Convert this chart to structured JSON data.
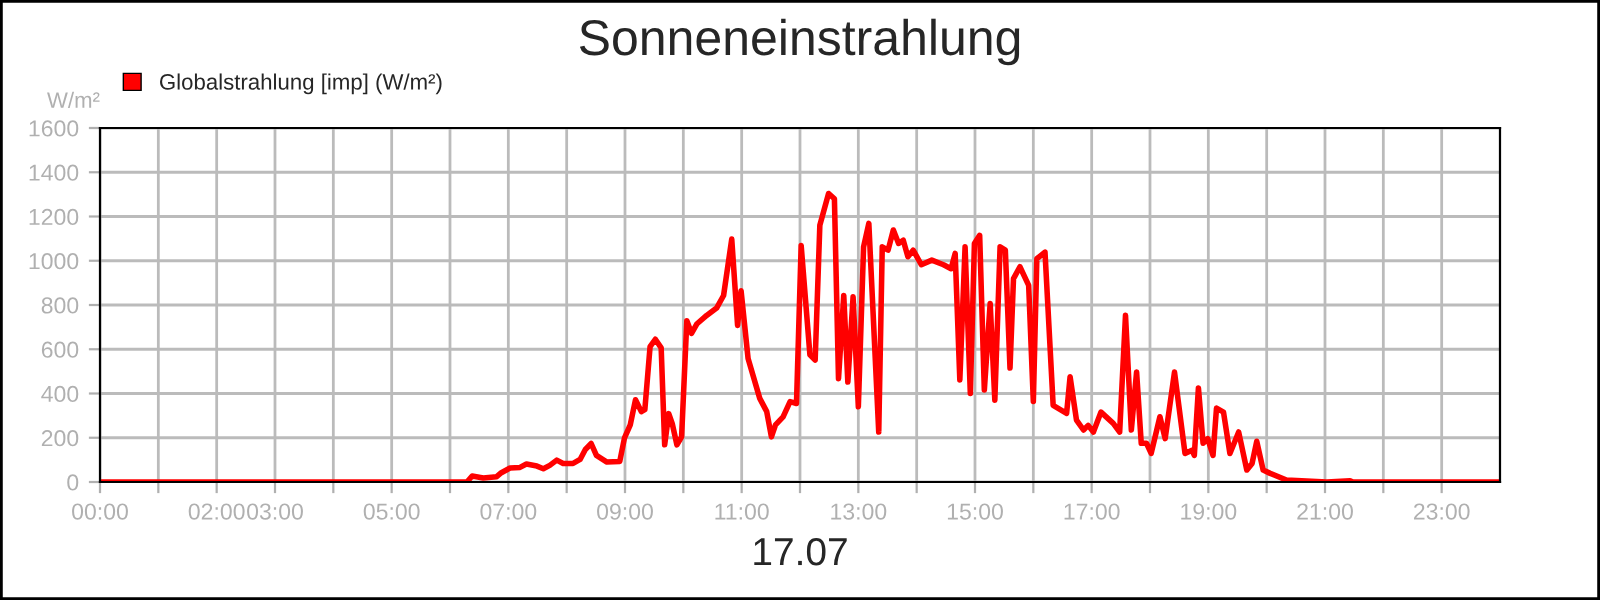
{
  "chart_data": {
    "type": "line",
    "title": "Sonneneinstrahlung",
    "xlabel": "17.07",
    "ylabel": "W/m²",
    "x": [
      0,
      6.29,
      6.38,
      6.57,
      6.8,
      6.88,
      7.03,
      7.2,
      7.31,
      7.49,
      7.6,
      7.71,
      7.83,
      7.94,
      8.11,
      8.23,
      8.32,
      8.42,
      8.51,
      8.69,
      8.91,
      8.99,
      9.09,
      9.18,
      9.28,
      9.34,
      9.43,
      9.52,
      9.62,
      9.68,
      9.75,
      9.81,
      9.89,
      9.97,
      10.06,
      10.14,
      10.23,
      10.4,
      10.57,
      10.69,
      10.83,
      10.93,
      10.99,
      11.11,
      11.31,
      11.43,
      11.51,
      11.58,
      11.71,
      11.83,
      11.94,
      12.02,
      12.17,
      12.26,
      12.34,
      12.49,
      12.59,
      12.66,
      12.75,
      12.82,
      12.91,
      13.0,
      13.09,
      13.18,
      13.35,
      13.41,
      13.51,
      13.6,
      13.69,
      13.77,
      13.85,
      13.94,
      14.08,
      14.26,
      14.46,
      14.59,
      14.66,
      14.74,
      14.83,
      14.92,
      14.99,
      15.08,
      15.16,
      15.26,
      15.34,
      15.43,
      15.52,
      15.6,
      15.66,
      15.77,
      15.92,
      16.0,
      16.06,
      16.2,
      16.34,
      16.57,
      16.63,
      16.74,
      16.86,
      16.94,
      17.03,
      17.16,
      17.37,
      17.48,
      17.58,
      17.68,
      17.77,
      17.85,
      17.94,
      18.02,
      18.17,
      18.26,
      18.42,
      18.6,
      18.72,
      18.76,
      18.83,
      18.91,
      18.99,
      19.08,
      19.14,
      19.26,
      19.37,
      19.52,
      19.66,
      19.75,
      19.83,
      19.94,
      20.06,
      20.34,
      21.03,
      21.43,
      21.48,
      24.0
    ],
    "series": [
      {
        "name": "Globalstrahlung [imp] (W/m²)",
        "color": "#ff0000",
        "values": [
          0,
          0,
          27,
          18,
          24,
          42,
          63,
          66,
          81,
          72,
          60,
          75,
          99,
          84,
          84,
          102,
          147,
          174,
          120,
          90,
          93,
          198,
          258,
          372,
          318,
          327,
          612,
          645,
          606,
          168,
          309,
          264,
          168,
          204,
          729,
          672,
          714,
          753,
          786,
          843,
          1098,
          708,
          864,
          558,
          378,
          318,
          204,
          258,
          294,
          363,
          355,
          1069,
          575,
          551,
          1160,
          1304,
          1280,
          467,
          843,
          452,
          837,
          340,
          1063,
          1169,
          226,
          1063,
          1048,
          1139,
          1078,
          1093,
          1018,
          1048,
          982,
          1003,
          982,
          964,
          1033,
          461,
          1063,
          400,
          1078,
          1115,
          416,
          807,
          370,
          1063,
          1048,
          515,
          919,
          973,
          889,
          364,
          1009,
          1039,
          346,
          310,
          476,
          280,
          235,
          256,
          226,
          316,
          265,
          226,
          753,
          235,
          497,
          175,
          175,
          129,
          295,
          196,
          497,
          129,
          144,
          120,
          425,
          175,
          196,
          120,
          334,
          316,
          129,
          226,
          54,
          84,
          184,
          54,
          39,
          9,
          0,
          6,
          0,
          0
        ]
      }
    ],
    "xlim": [
      0,
      24
    ],
    "xticks": [
      {
        "value": 0,
        "label": "00:00"
      },
      {
        "value": 1,
        "label": null
      },
      {
        "value": 2,
        "label": "02:00"
      },
      {
        "value": 3,
        "label": "03:00"
      },
      {
        "value": 4,
        "label": null
      },
      {
        "value": 5,
        "label": "05:00"
      },
      {
        "value": 6,
        "label": null
      },
      {
        "value": 7,
        "label": "07:00"
      },
      {
        "value": 8,
        "label": null
      },
      {
        "value": 9,
        "label": "09:00"
      },
      {
        "value": 10,
        "label": null
      },
      {
        "value": 11,
        "label": "11:00"
      },
      {
        "value": 12,
        "label": null
      },
      {
        "value": 13,
        "label": "13:00"
      },
      {
        "value": 14,
        "label": null
      },
      {
        "value": 15,
        "label": "15:00"
      },
      {
        "value": 16,
        "label": null
      },
      {
        "value": 17,
        "label": "17:00"
      },
      {
        "value": 18,
        "label": null
      },
      {
        "value": 19,
        "label": "19:00"
      },
      {
        "value": 20,
        "label": null
      },
      {
        "value": 21,
        "label": "21:00"
      },
      {
        "value": 22,
        "label": null
      },
      {
        "value": 23,
        "label": "23:00"
      }
    ],
    "ylim": [
      0,
      1600
    ],
    "yticks": [
      0,
      200,
      400,
      600,
      800,
      1000,
      1200,
      1400,
      1600
    ],
    "grid": true,
    "legend": "top left",
    "marker": "none",
    "line_style": "solid"
  }
}
